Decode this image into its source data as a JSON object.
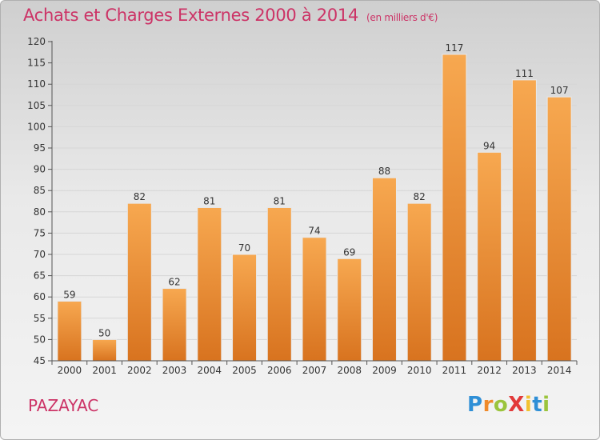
{
  "header": {
    "title": "Achats et Charges Externes 2000 à 2014",
    "subtitle": "(en milliers d'€)"
  },
  "footer": {
    "commune": "PAZAYAC",
    "logo": {
      "letters": [
        {
          "char": "P",
          "color": "#2f8fd6"
        },
        {
          "char": "r",
          "color": "#f08a2a"
        },
        {
          "char": "o",
          "color": "#9bc43c"
        },
        {
          "char": "X",
          "color": "#e23a3a"
        },
        {
          "char": "i",
          "color": "#f2c230"
        },
        {
          "char": "t",
          "color": "#2f8fd6"
        },
        {
          "char": "i",
          "color": "#9bc43c"
        }
      ]
    }
  },
  "colors": {
    "bar_top": "#f7a850",
    "bar_bottom": "#d8731f",
    "bar_stroke": "#e8e8e8",
    "axis": "#555555",
    "grid": "#d6d6d6",
    "text": "#333333",
    "accent": "#cc3366"
  },
  "chart_data": {
    "type": "bar",
    "categories": [
      "2000",
      "2001",
      "2002",
      "2003",
      "2004",
      "2005",
      "2006",
      "2007",
      "2008",
      "2009",
      "2010",
      "2011",
      "2012",
      "2013",
      "2014"
    ],
    "values": [
      59,
      50,
      82,
      62,
      81,
      70,
      81,
      74,
      69,
      88,
      82,
      117,
      94,
      111,
      107
    ],
    "data_labels": [
      "59",
      "50",
      "82",
      "62",
      "81",
      "70",
      "81",
      "74",
      "69",
      "88",
      "82",
      "117",
      "94",
      "111",
      "107"
    ],
    "title": "Achats et Charges Externes 2000 à 2014",
    "subtitle": "(en milliers d'€)",
    "xlabel": "",
    "ylabel": "",
    "ylim": [
      45,
      120
    ],
    "yticks": [
      45,
      50,
      55,
      60,
      65,
      70,
      75,
      80,
      85,
      90,
      95,
      100,
      105,
      110,
      115,
      120
    ],
    "grid": true,
    "legend": "none"
  }
}
